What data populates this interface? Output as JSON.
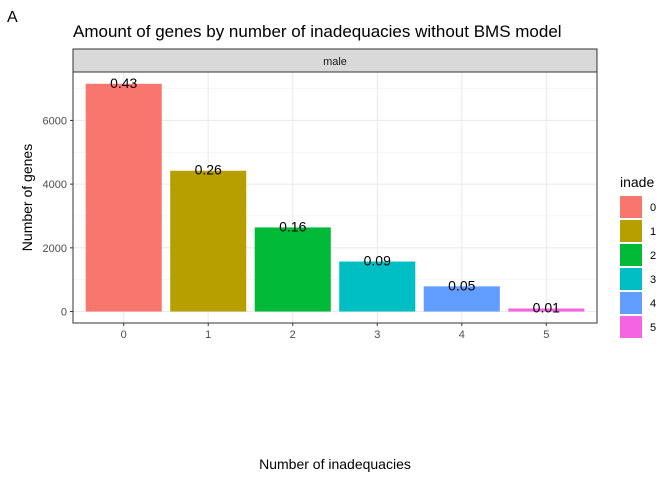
{
  "panel_tag": "A",
  "chart_data": {
    "type": "bar",
    "title": "Amount of genes by number of inadequacies without BMS model",
    "facet_label": "male",
    "xlabel": "Number of inadequacies",
    "ylabel": "Number of genes",
    "categories": [
      "0",
      "1",
      "2",
      "3",
      "4",
      "5"
    ],
    "values": [
      7150,
      4420,
      2640,
      1570,
      790,
      95
    ],
    "data_labels": [
      "0.43",
      "0.26",
      "0.16",
      "0.09",
      "0.05",
      "0.01"
    ],
    "colors": [
      "#F8766D",
      "#B79F00",
      "#00BA38",
      "#00BFC4",
      "#619CFF",
      "#F564E3"
    ],
    "yticks": [
      0,
      2000,
      4000,
      6000
    ],
    "ylim": [
      -360,
      7520
    ],
    "grid": true,
    "legend": {
      "title": "inade",
      "placement": "right",
      "entries": [
        "0",
        "1",
        "2",
        "3",
        "4",
        "5"
      ]
    }
  }
}
